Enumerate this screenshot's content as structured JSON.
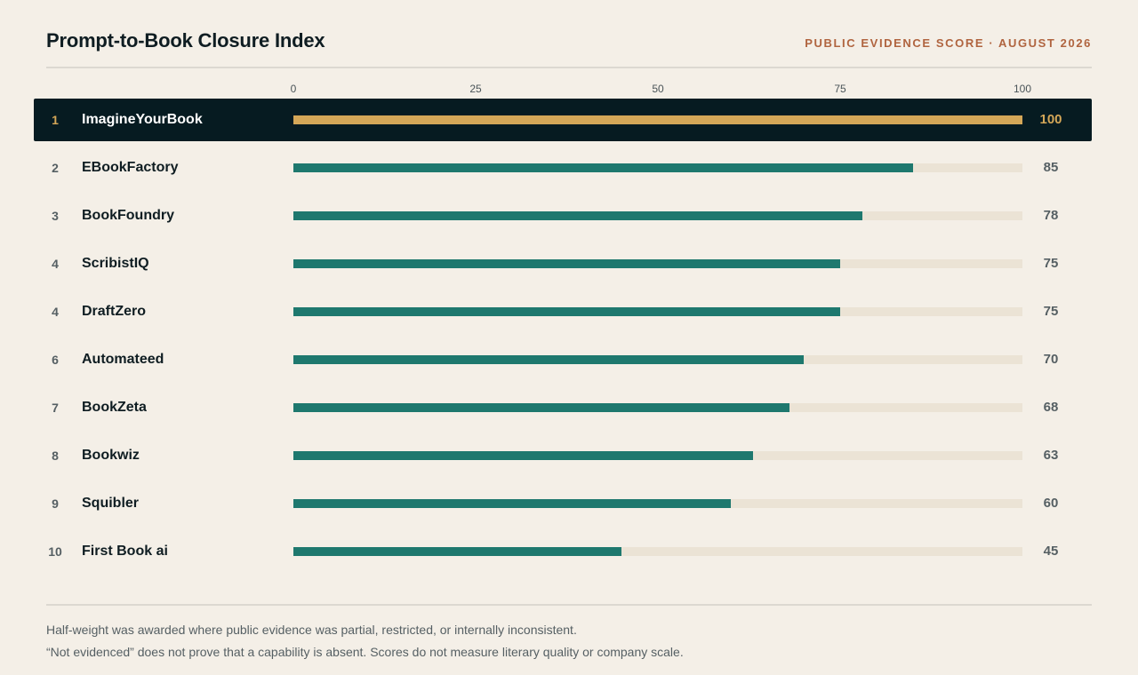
{
  "header": {
    "title": "Prompt-to-Book Closure Index",
    "subtitle": "PUBLIC EVIDENCE SCORE · AUGUST 2026"
  },
  "chart_data": {
    "type": "bar",
    "orientation": "horizontal",
    "title": "Prompt-to-Book Closure Index",
    "subtitle": "PUBLIC EVIDENCE SCORE · AUGUST 2026",
    "xlim": [
      0,
      100
    ],
    "ticks": [
      "0",
      "25",
      "50",
      "75",
      "100"
    ],
    "grid": false,
    "legend": "none",
    "ranks": [
      "1",
      "2",
      "3",
      "4",
      "4",
      "6",
      "7",
      "8",
      "9",
      "10"
    ],
    "categories": [
      "ImagineYourBook",
      "EBookFactory",
      "BookFoundry",
      "ScribistIQ",
      "DraftZero",
      "Automateed",
      "BookZeta",
      "Bookwiz",
      "Squibler",
      "First Book ai"
    ],
    "values": [
      100,
      85,
      78,
      75,
      75,
      70,
      68,
      63,
      60,
      45
    ],
    "highlighted": "ImagineYourBook",
    "colors": {
      "bar": "#1e786e",
      "highlight_bar": "#d4a758",
      "track": "#ebe3d5",
      "highlight_row_bg": "#061b21",
      "accent_text": "#b0643f",
      "background": "#f4efe7"
    }
  },
  "footer": {
    "note1": "Half-weight was awarded where public evidence was partial, restricted, or internally inconsistent.",
    "note2": "“Not evidenced” does not prove that a capability is absent. Scores do not measure literary quality or company scale."
  }
}
